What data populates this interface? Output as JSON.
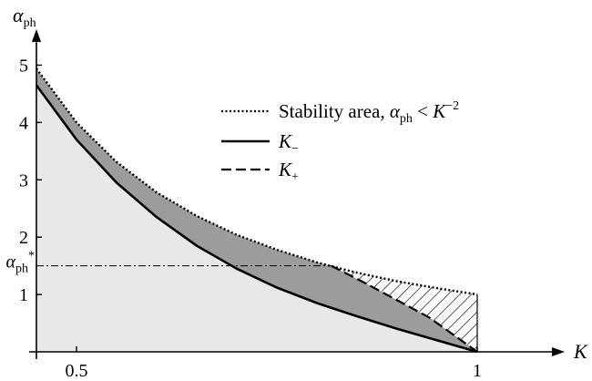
{
  "chart_data": {
    "type": "area",
    "title": "",
    "xlabel": {
      "symbol": "K"
    },
    "ylabel": {
      "symbol": "α",
      "sub": "ph"
    },
    "xlim": [
      0.45,
      1.1
    ],
    "ylim": [
      0,
      5.5
    ],
    "x_ticks": [
      {
        "value": 0.5,
        "label": "0.5"
      },
      {
        "value": 1,
        "label": "1"
      }
    ],
    "y_ticks": [
      {
        "value": 1,
        "label": "1"
      },
      {
        "value": 2,
        "label": "2"
      },
      {
        "value": 3,
        "label": "3"
      },
      {
        "value": 4,
        "label": "4"
      },
      {
        "value": 5,
        "label": "5"
      }
    ],
    "threshold": {
      "value": 1.5,
      "label": {
        "symbol": "α",
        "sub": "ph",
        "sup": "*"
      }
    },
    "legend": {
      "placement": "top-right",
      "entries": [
        {
          "style": "dotted",
          "text": "Stability area, ",
          "expr": {
            "symbol": "α",
            "sub": "ph",
            "op": " < ",
            "base": "K",
            "sup": "−2"
          }
        },
        {
          "style": "solid",
          "text": "",
          "expr": {
            "base": "K",
            "sub": "−"
          }
        },
        {
          "style": "dashed",
          "text": "",
          "expr": {
            "base": "K",
            "sub": "+"
          }
        }
      ]
    },
    "series": [
      {
        "style": "dotted",
        "x": [
          0.45,
          0.5,
          0.55,
          0.6,
          0.65,
          0.7,
          0.75,
          0.8,
          0.85,
          0.9,
          0.95,
          1.0
        ],
        "y": [
          4.94,
          4.0,
          3.31,
          2.78,
          2.37,
          2.04,
          1.78,
          1.56,
          1.38,
          1.23,
          1.11,
          1.0
        ]
      },
      {
        "style": "solid",
        "x": [
          0.45,
          0.5,
          0.55,
          0.6,
          0.65,
          0.7,
          0.75,
          0.8,
          0.85,
          0.9,
          0.95,
          1.0
        ],
        "y": [
          4.65,
          3.7,
          2.95,
          2.35,
          1.85,
          1.45,
          1.12,
          0.85,
          0.62,
          0.4,
          0.2,
          0.0
        ]
      },
      {
        "style": "dashed",
        "x": [
          0.818,
          0.86,
          0.9,
          0.94,
          0.97,
          1.0
        ],
        "y": [
          1.5,
          1.2,
          0.9,
          0.6,
          0.3,
          0.0
        ]
      }
    ],
    "colors": {
      "light_region": "#e8e8e8",
      "dark_region": "#9c9c9c",
      "hatch": "#000000"
    },
    "grid": false
  }
}
